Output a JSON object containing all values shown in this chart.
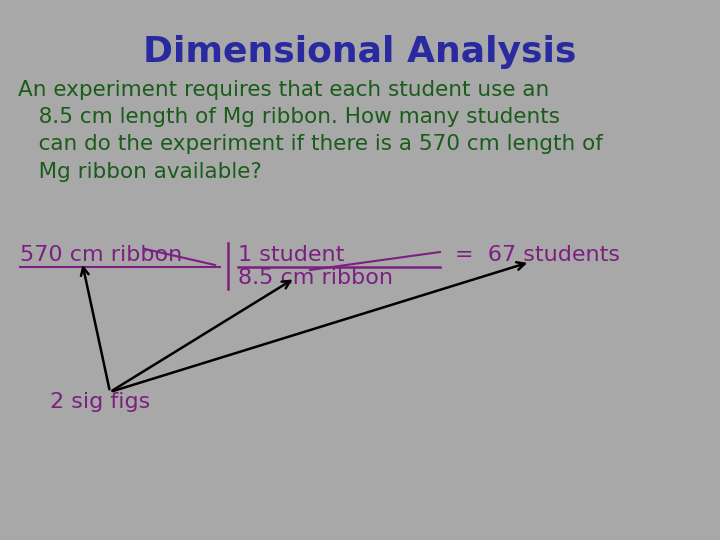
{
  "background_color": "#a8a8a8",
  "title": "Dimensional Analysis",
  "title_color": "#2929a0",
  "title_fontsize": 26,
  "body_text": "An experiment requires that each student use an\n   8.5 cm length of Mg ribbon. How many students\n   can do the experiment if there is a 570 cm length of\n   Mg ribbon available?",
  "body_color": "#1a5c1a",
  "body_fontsize": 15.5,
  "formula_color": "#7b2080",
  "formula_fontsize": 16,
  "result_text": "=  67 students",
  "sig_figs": "2 sig figs",
  "sig_figs_color": "#7b2080",
  "sig_figs_fontsize": 16
}
